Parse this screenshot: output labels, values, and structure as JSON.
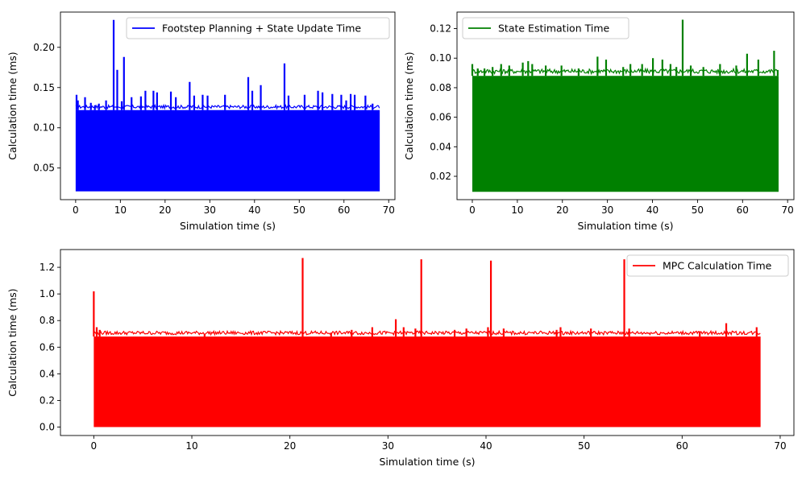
{
  "chart_data": [
    {
      "type": "line",
      "id": "footstep",
      "title": "",
      "xlabel": "Simulation time (s)",
      "ylabel": "Calculation time (ms)",
      "xlim": [
        -3.4,
        71.4
      ],
      "ylim": [
        0.0107,
        0.2438
      ],
      "xticks": [
        0,
        10,
        20,
        30,
        40,
        50,
        60,
        70
      ],
      "yticks": [
        0.05,
        0.1,
        0.15,
        0.2
      ],
      "ytick_labels": [
        "0.05",
        "0.10",
        "0.15",
        "0.20"
      ],
      "legend_position": "top-right",
      "grid": false,
      "series": [
        {
          "name": "Footstep Planning + State Update Time",
          "color": "#0000ff",
          "x_range": [
            0,
            68
          ],
          "band_low": 0.021,
          "band_high": 0.122,
          "spikes": [
            [
              0.2,
              0.141
            ],
            [
              0.5,
              0.134
            ],
            [
              2.1,
              0.138
            ],
            [
              3.4,
              0.131
            ],
            [
              4.3,
              0.128
            ],
            [
              5.2,
              0.13
            ],
            [
              6.8,
              0.134
            ],
            [
              8.5,
              0.234
            ],
            [
              9.3,
              0.172
            ],
            [
              10.3,
              0.133
            ],
            [
              10.8,
              0.188
            ],
            [
              12.5,
              0.138
            ],
            [
              14.6,
              0.139
            ],
            [
              15.6,
              0.146
            ],
            [
              17.4,
              0.146
            ],
            [
              18.2,
              0.144
            ],
            [
              21.3,
              0.145
            ],
            [
              22.4,
              0.138
            ],
            [
              25.5,
              0.157
            ],
            [
              26.5,
              0.14
            ],
            [
              28.4,
              0.141
            ],
            [
              29.5,
              0.14
            ],
            [
              33.4,
              0.141
            ],
            [
              38.6,
              0.163
            ],
            [
              39.5,
              0.146
            ],
            [
              41.4,
              0.153
            ],
            [
              46.7,
              0.18
            ],
            [
              47.6,
              0.14
            ],
            [
              51.2,
              0.141
            ],
            [
              54.2,
              0.146
            ],
            [
              55.2,
              0.144
            ],
            [
              57.4,
              0.142
            ],
            [
              59.4,
              0.141
            ],
            [
              60.5,
              0.134
            ],
            [
              61.5,
              0.142
            ],
            [
              62.4,
              0.141
            ],
            [
              64.8,
              0.14
            ],
            [
              66.4,
              0.13
            ]
          ]
        }
      ]
    },
    {
      "type": "line",
      "id": "state-estimation",
      "title": "",
      "xlabel": "Simulation time (s)",
      "ylabel": "Calculation time (ms)",
      "xlim": [
        -3.4,
        71.4
      ],
      "ylim": [
        0.0042,
        0.1312
      ],
      "xticks": [
        0,
        10,
        20,
        30,
        40,
        50,
        60,
        70
      ],
      "yticks": [
        0.02,
        0.04,
        0.06,
        0.08,
        0.1,
        0.12
      ],
      "ytick_labels": [
        "0.02",
        "0.04",
        "0.06",
        "0.08",
        "0.10",
        "0.12"
      ],
      "legend_position": "top-left",
      "grid": false,
      "series": [
        {
          "name": "State Estimation Time",
          "color": "#008000",
          "x_range": [
            0,
            68
          ],
          "band_low": 0.0095,
          "band_high": 0.088,
          "spikes": [
            [
              0.0,
              0.096
            ],
            [
              1.2,
              0.093
            ],
            [
              2.7,
              0.093
            ],
            [
              4.5,
              0.094
            ],
            [
              6.4,
              0.096
            ],
            [
              8.2,
              0.095
            ],
            [
              11.2,
              0.097
            ],
            [
              12.4,
              0.098
            ],
            [
              13.3,
              0.096
            ],
            [
              16.3,
              0.095
            ],
            [
              19.8,
              0.095
            ],
            [
              23.6,
              0.093
            ],
            [
              27.8,
              0.101
            ],
            [
              29.7,
              0.099
            ],
            [
              33.5,
              0.094
            ],
            [
              35.1,
              0.096
            ],
            [
              37.7,
              0.096
            ],
            [
              40.1,
              0.1
            ],
            [
              42.2,
              0.099
            ],
            [
              44.0,
              0.096
            ],
            [
              45.3,
              0.094
            ],
            [
              46.7,
              0.126
            ],
            [
              48.5,
              0.095
            ],
            [
              51.3,
              0.094
            ],
            [
              55.0,
              0.096
            ],
            [
              58.6,
              0.095
            ],
            [
              61.0,
              0.103
            ],
            [
              63.5,
              0.099
            ],
            [
              67.0,
              0.105
            ],
            [
              67.8,
              0.092
            ]
          ]
        }
      ]
    },
    {
      "type": "line",
      "id": "mpc",
      "title": "",
      "xlabel": "Simulation time (s)",
      "ylabel": "Calculation time (ms)",
      "xlim": [
        -3.4,
        71.4
      ],
      "ylim": [
        -0.0635,
        1.3335
      ],
      "xticks": [
        0,
        10,
        20,
        30,
        40,
        50,
        60,
        70
      ],
      "yticks": [
        0.0,
        0.2,
        0.4,
        0.6,
        0.8,
        1.0,
        1.2
      ],
      "ytick_labels": [
        "0.0",
        "0.2",
        "0.4",
        "0.6",
        "0.8",
        "1.0",
        "1.2"
      ],
      "legend_position": "top-right",
      "grid": false,
      "series": [
        {
          "name": "MPC Calculation Time",
          "color": "#ff0000",
          "x_range": [
            0,
            68
          ],
          "band_low": 0.0,
          "band_high": 0.68,
          "spikes": [
            [
              0.0,
              1.02
            ],
            [
              0.3,
              0.75
            ],
            [
              0.6,
              0.73
            ],
            [
              11.3,
              0.7
            ],
            [
              21.3,
              1.27
            ],
            [
              24.2,
              0.71
            ],
            [
              26.3,
              0.73
            ],
            [
              28.4,
              0.75
            ],
            [
              30.8,
              0.81
            ],
            [
              31.6,
              0.75
            ],
            [
              32.8,
              0.74
            ],
            [
              33.4,
              1.26
            ],
            [
              36.8,
              0.73
            ],
            [
              38.0,
              0.74
            ],
            [
              40.2,
              0.75
            ],
            [
              40.5,
              1.25
            ],
            [
              41.8,
              0.74
            ],
            [
              47.2,
              0.73
            ],
            [
              47.6,
              0.75
            ],
            [
              50.7,
              0.74
            ],
            [
              54.1,
              1.26
            ],
            [
              54.6,
              0.74
            ],
            [
              61.8,
              0.72
            ],
            [
              64.5,
              0.78
            ],
            [
              67.6,
              0.75
            ]
          ]
        }
      ]
    }
  ]
}
